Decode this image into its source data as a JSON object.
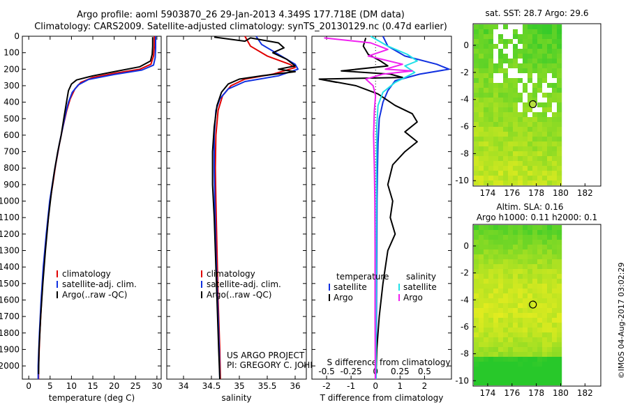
{
  "header": {
    "line1": "Argo profile: aoml 5903870_26 29-Jan-2013 4.349S 177.718E (DM data)",
    "line2": "Climatology: CARS2009. Satellite-adjusted climatology: synTS_20130129.nc (0.47d earlier)"
  },
  "colors": {
    "clim": "#e00000",
    "sat": "#1030e0",
    "argo": "#000000",
    "sal_sat": "#20e0e8",
    "sal_argo": "#f020f0"
  },
  "chart_data": [
    {
      "id": "temperature",
      "type": "line",
      "xlabel": "temperature (deg C)",
      "ylabel": "depth",
      "xlim": [
        -1.5,
        31
      ],
      "ylim": [
        2080,
        0
      ],
      "xticks": [
        0,
        5,
        10,
        15,
        20,
        25,
        30
      ],
      "yticks": [
        0,
        100,
        200,
        300,
        400,
        500,
        600,
        700,
        800,
        900,
        1000,
        1100,
        1200,
        1300,
        1400,
        1500,
        1600,
        1700,
        1800,
        1900,
        2000
      ],
      "legend": [
        "climatology",
        "satellite-adj. clim.",
        "Argo(..raw -QC)"
      ],
      "series": [
        {
          "name": "climatology",
          "color_key": "clim",
          "points": [
            [
              29.4,
              0
            ],
            [
              29.4,
              60
            ],
            [
              29.2,
              120
            ],
            [
              28.6,
              170
            ],
            [
              26,
              200
            ],
            [
              20,
              225
            ],
            [
              15,
              250
            ],
            [
              12.2,
              280
            ],
            [
              10.8,
              320
            ],
            [
              9.7,
              380
            ],
            [
              8.9,
              450
            ],
            [
              8,
              550
            ],
            [
              7.2,
              650
            ],
            [
              6.3,
              780
            ],
            [
              5.6,
              900
            ],
            [
              5,
              1000
            ],
            [
              4.2,
              1200
            ],
            [
              3.5,
              1400
            ],
            [
              3,
              1600
            ],
            [
              2.6,
              1800
            ],
            [
              2.3,
              2000
            ],
            [
              2.3,
              2080
            ]
          ]
        },
        {
          "name": "satellite-adj. clim.",
          "color_key": "sat",
          "points": [
            [
              29.7,
              0
            ],
            [
              29.7,
              70
            ],
            [
              29.6,
              130
            ],
            [
              29.2,
              175
            ],
            [
              26.5,
              205
            ],
            [
              20,
              232
            ],
            [
              14,
              262
            ],
            [
              11.6,
              295
            ],
            [
              10.2,
              340
            ],
            [
              9.3,
              400
            ],
            [
              8.7,
              460
            ],
            [
              7.9,
              560
            ],
            [
              7.1,
              660
            ],
            [
              6.2,
              790
            ],
            [
              5.5,
              900
            ],
            [
              4.9,
              1000
            ],
            [
              4.1,
              1200
            ],
            [
              3.4,
              1400
            ],
            [
              2.9,
              1600
            ],
            [
              2.5,
              1800
            ],
            [
              2.2,
              2000
            ],
            [
              2.2,
              2080
            ]
          ]
        },
        {
          "name": "Argo(..raw -QC)",
          "color_key": "argo",
          "points": [
            [
              29,
              5
            ],
            [
              29,
              60
            ],
            [
              28.9,
              110
            ],
            [
              28.5,
              150
            ],
            [
              26,
              185
            ],
            [
              20,
              215
            ],
            [
              15,
              240
            ],
            [
              11.2,
              265
            ],
            [
              10,
              290
            ],
            [
              9.3,
              330
            ],
            [
              8.7,
              420
            ],
            [
              8.2,
              500
            ],
            [
              7.6,
              600
            ],
            [
              6.8,
              700
            ],
            [
              6,
              820
            ],
            [
              5.3,
              950
            ],
            [
              4.6,
              1100
            ],
            [
              3.9,
              1300
            ],
            [
              3.3,
              1500
            ],
            [
              2.8,
              1700
            ],
            [
              2.4,
              1900
            ],
            [
              2.3,
              2050
            ]
          ]
        }
      ]
    },
    {
      "id": "salinity",
      "type": "line",
      "xlabel": "salinity",
      "ylabel": "depth",
      "xlim": [
        33.7,
        36.2
      ],
      "ylim": [
        2080,
        0
      ],
      "xticks": [
        34,
        34.5,
        35,
        35.5,
        36
      ],
      "legend": [
        "climatology",
        "satellite-adj. clim.",
        "Argo(..raw -QC)"
      ],
      "annotation": [
        "US ARGO PROJECT",
        "PI: GREGORY C. JOHNSON"
      ],
      "series": [
        {
          "name": "climatology",
          "color_key": "clim",
          "points": [
            [
              35.1,
              0
            ],
            [
              35.2,
              60
            ],
            [
              35.5,
              120
            ],
            [
              35.9,
              170
            ],
            [
              36,
              190
            ],
            [
              35.6,
              230
            ],
            [
              35.1,
              260
            ],
            [
              34.85,
              300
            ],
            [
              34.7,
              360
            ],
            [
              34.62,
              450
            ],
            [
              34.58,
              600
            ],
            [
              34.57,
              800
            ],
            [
              34.58,
              1000
            ],
            [
              34.6,
              1300
            ],
            [
              34.62,
              1600
            ],
            [
              34.65,
              1900
            ],
            [
              34.66,
              2080
            ]
          ]
        },
        {
          "name": "satellite-adj. clim.",
          "color_key": "sat",
          "points": [
            [
              35.3,
              0
            ],
            [
              35.4,
              50
            ],
            [
              35.7,
              110
            ],
            [
              36,
              170
            ],
            [
              36.05,
              200
            ],
            [
              35.7,
              240
            ],
            [
              35.1,
              275
            ],
            [
              34.8,
              320
            ],
            [
              34.65,
              380
            ],
            [
              34.58,
              450
            ],
            [
              34.55,
              600
            ],
            [
              34.55,
              800
            ],
            [
              34.56,
              1000
            ],
            [
              34.58,
              1300
            ],
            [
              34.61,
              1600
            ],
            [
              34.64,
              1900
            ],
            [
              34.65,
              2080
            ]
          ]
        },
        {
          "name": "Argo(..raw -QC)",
          "color_key": "argo",
          "points": [
            [
              34.55,
              5
            ],
            [
              35.1,
              30
            ],
            [
              35.2,
              10
            ],
            [
              35.7,
              40
            ],
            [
              35.8,
              70
            ],
            [
              35.6,
              100
            ],
            [
              35.85,
              140
            ],
            [
              36,
              180
            ],
            [
              35.7,
              200
            ],
            [
              36,
              215
            ],
            [
              35.4,
              240
            ],
            [
              35,
              260
            ],
            [
              34.8,
              290
            ],
            [
              34.68,
              340
            ],
            [
              34.6,
              420
            ],
            [
              34.55,
              550
            ],
            [
              34.52,
              700
            ],
            [
              34.52,
              900
            ],
            [
              34.55,
              1100
            ],
            [
              34.57,
              1300
            ],
            [
              34.6,
              1600
            ],
            [
              34.63,
              1900
            ],
            [
              34.65,
              2080
            ]
          ]
        }
      ]
    },
    {
      "id": "differences",
      "type": "line",
      "xlabel": "T difference from climatology",
      "x2label": "S difference from climatology",
      "xlim": [
        -2.6,
        3.1
      ],
      "ylim": [
        2080,
        0
      ],
      "xticks": [
        -2,
        -1,
        0,
        1,
        2
      ],
      "x2ticks": [
        "-0.5",
        "-0.25",
        "0",
        "0.25",
        "0.5"
      ],
      "legend_titles": [
        "temperature",
        "salinity"
      ],
      "legend": [
        "satellite",
        "Argo",
        "satellite",
        "Argo"
      ],
      "series": [
        {
          "name": "T satellite",
          "color_key": "sat",
          "points": [
            [
              0.3,
              0
            ],
            [
              0.5,
              60
            ],
            [
              1.2,
              120
            ],
            [
              2.5,
              170
            ],
            [
              3,
              200
            ],
            [
              1.8,
              230
            ],
            [
              0.8,
              270
            ],
            [
              0.5,
              330
            ],
            [
              0.3,
              400
            ],
            [
              0.15,
              500
            ],
            [
              0.1,
              650
            ],
            [
              0.08,
              800
            ],
            [
              0.06,
              1000
            ],
            [
              0.05,
              1300
            ],
            [
              0.04,
              1600
            ],
            [
              0.03,
              1900
            ],
            [
              0.02,
              2080
            ]
          ]
        },
        {
          "name": "T Argo",
          "color_key": "argo",
          "points": [
            [
              -0.4,
              10
            ],
            [
              -0.5,
              60
            ],
            [
              -0.3,
              110
            ],
            [
              0.2,
              150
            ],
            [
              0.5,
              180
            ],
            [
              -1.4,
              210
            ],
            [
              0.6,
              230
            ],
            [
              1.1,
              250
            ],
            [
              -2.3,
              260
            ],
            [
              -1.6,
              280
            ],
            [
              -1.9,
              270
            ],
            [
              -0.8,
              300
            ],
            [
              0.1,
              350
            ],
            [
              0.8,
              420
            ],
            [
              1.5,
              470
            ],
            [
              1.7,
              520
            ],
            [
              1.2,
              580
            ],
            [
              1.7,
              640
            ],
            [
              1.2,
              700
            ],
            [
              0.7,
              780
            ],
            [
              0.5,
              900
            ],
            [
              0.7,
              1000
            ],
            [
              0.6,
              1100
            ],
            [
              0.8,
              1200
            ],
            [
              0.5,
              1300
            ],
            [
              0.3,
              1500
            ],
            [
              0.15,
              1700
            ],
            [
              0.05,
              1900
            ],
            [
              0.02,
              2050
            ]
          ]
        },
        {
          "name": "S satellite",
          "color_key": "sal_sat",
          "points": [
            [
              -0.2,
              0
            ],
            [
              0.5,
              60
            ],
            [
              1.3,
              110
            ],
            [
              1.7,
              150
            ],
            [
              1.2,
              180
            ],
            [
              1.6,
              220
            ],
            [
              0.8,
              280
            ],
            [
              0.3,
              340
            ],
            [
              0.1,
              420
            ],
            [
              0.05,
              550
            ],
            [
              0.04,
              800
            ],
            [
              0.03,
              1200
            ],
            [
              0.02,
              1700
            ],
            [
              0.02,
              2080
            ]
          ]
        },
        {
          "name": "S Argo",
          "color_key": "sal_argo",
          "points": [
            [
              -2.1,
              10
            ],
            [
              -0.2,
              40
            ],
            [
              0.5,
              80
            ],
            [
              -0.3,
              120
            ],
            [
              1.1,
              170
            ],
            [
              0.4,
              200
            ],
            [
              1.5,
              210
            ],
            [
              0.3,
              230
            ],
            [
              -0.4,
              260
            ],
            [
              -0.1,
              300
            ],
            [
              0,
              360
            ],
            [
              -0.05,
              450
            ],
            [
              -0.08,
              600
            ],
            [
              -0.05,
              800
            ],
            [
              -0.03,
              1000
            ],
            [
              -0.02,
              1300
            ],
            [
              -0.02,
              1700
            ],
            [
              -0.01,
              2080
            ]
          ]
        }
      ]
    }
  ],
  "maps": [
    {
      "id": "sst-map",
      "title": "sat. SST: 28.7  Argo: 29.6",
      "xticks": [
        174,
        176,
        178,
        180,
        182
      ],
      "yticks": [
        0,
        -2,
        -4,
        -6,
        -8,
        -10
      ],
      "argo_position": {
        "lon": 177.718,
        "lat": -4.349
      },
      "palette": "green-yellow"
    },
    {
      "id": "sla-map",
      "title_line1": "Altim. SLA: 0.16",
      "title_line2": "Argo h1000: 0.11  h2000: 0.1",
      "xticks": [
        174,
        176,
        178,
        180,
        182
      ],
      "yticks": [
        0,
        -2,
        -4,
        -6,
        -8,
        -10
      ],
      "argo_position": {
        "lon": 177.718,
        "lat": -4.349
      },
      "palette": "green-yellow"
    }
  ],
  "footer_stamp": "©IMOS 04-Aug-2017 03:02:29"
}
